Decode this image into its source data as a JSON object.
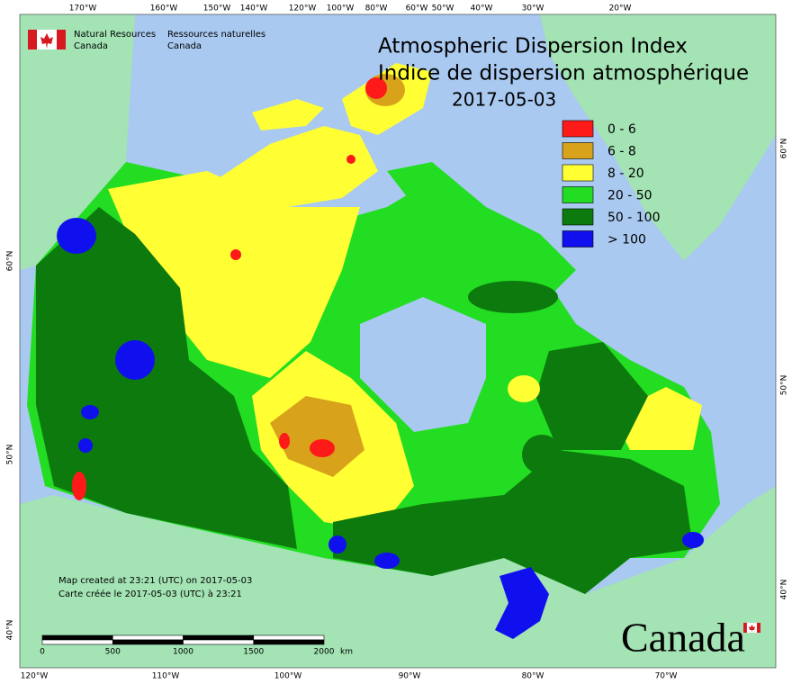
{
  "header": {
    "org_en": [
      "Natural Resources",
      "Canada"
    ],
    "org_fr": [
      "Ressources naturelles",
      "Canada"
    ]
  },
  "title": {
    "en": "Atmospheric Dispersion Index",
    "fr": "Indice de dispersion atmosphérique",
    "date": "2017-05-03"
  },
  "legend": [
    {
      "label": "0 - 6",
      "color": "#ff1a1a"
    },
    {
      "label": "6 - 8",
      "color": "#d9a21b"
    },
    {
      "label": "8 - 20",
      "color": "#ffff33"
    },
    {
      "label": "20 - 50",
      "color": "#22dd22"
    },
    {
      "label": "50 - 100",
      "color": "#0d7a0d"
    },
    {
      "label": "> 100",
      "color": "#1010ee"
    }
  ],
  "graticule": {
    "top": [
      "170°W",
      "160°W",
      "150°W",
      "140°W",
      "120°W",
      "100°W",
      "80°W",
      "60°W",
      "50°W",
      "40°W",
      "30°W",
      "20°W"
    ],
    "bottom": [
      "120°W",
      "110°W",
      "100°W",
      "90°W",
      "80°W",
      "70°W"
    ],
    "left": [
      "60°N",
      "50°N",
      "40°N"
    ],
    "right": [
      "60°N",
      "50°N",
      "40°N"
    ]
  },
  "credits": [
    "Map created at 23:21 (UTC) on 2017-05-03",
    "Carte créée le 2017-05-03 (UTC) à 23:21"
  ],
  "scale_bar": {
    "ticks": [
      "0",
      "500",
      "1000",
      "1500",
      "2000"
    ],
    "unit": "km"
  },
  "wordmark": "Canada"
}
